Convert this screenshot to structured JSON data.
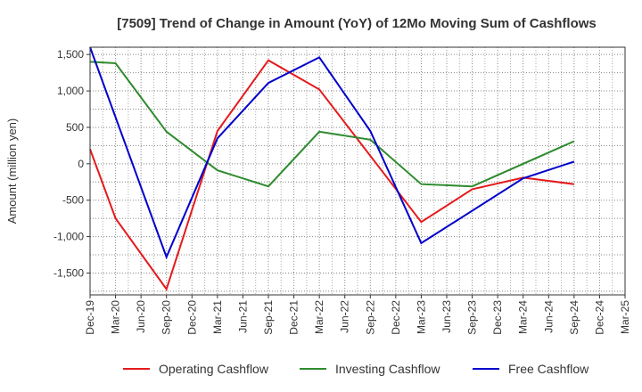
{
  "chart_data": {
    "type": "line",
    "title": "[7509]  Trend of Change in Amount (YoY) of 12Mo Moving Sum of Cashflows",
    "xlabel": "",
    "ylabel": "Amount (million yen)",
    "ylim": [
      -1800,
      1600
    ],
    "yticks": [
      1500,
      1000,
      500,
      0,
      -500,
      -1000,
      -1500
    ],
    "ytick_labels": [
      "1,500",
      "1,000",
      "500",
      "0",
      "-500",
      "-1,000",
      "-1,500"
    ],
    "categories": [
      "Dec-19",
      "Mar-20",
      "Jun-20",
      "Sep-20",
      "Dec-20",
      "Mar-21",
      "Jun-21",
      "Sep-21",
      "Dec-21",
      "Mar-22",
      "Jun-22",
      "Sep-22",
      "Dec-22",
      "Mar-23",
      "Jun-23",
      "Sep-23",
      "Dec-23",
      "Mar-24",
      "Jun-24",
      "Sep-24",
      "Dec-24",
      "Mar-25"
    ],
    "grid": true,
    "legend_position": "bottom",
    "series": [
      {
        "name": "Operating Cashflow",
        "color": "#e41a1c",
        "values": [
          200,
          -750,
          null,
          -1720,
          null,
          450,
          null,
          1420,
          null,
          1020,
          null,
          null,
          null,
          -800,
          null,
          -350,
          null,
          -190,
          null,
          -280,
          null,
          null
        ]
      },
      {
        "name": "Investing Cashflow",
        "color": "#2e8b2e",
        "values": [
          1400,
          1380,
          null,
          440,
          null,
          -90,
          null,
          -310,
          null,
          440,
          null,
          330,
          null,
          -280,
          null,
          -310,
          null,
          null,
          null,
          310,
          null,
          null
        ]
      },
      {
        "name": "Free Cashflow",
        "color": "#0000cc",
        "values": [
          1600,
          null,
          null,
          -1280,
          null,
          350,
          null,
          1110,
          null,
          1460,
          null,
          450,
          null,
          -1090,
          null,
          null,
          null,
          -200,
          null,
          30,
          null,
          null
        ]
      }
    ]
  }
}
